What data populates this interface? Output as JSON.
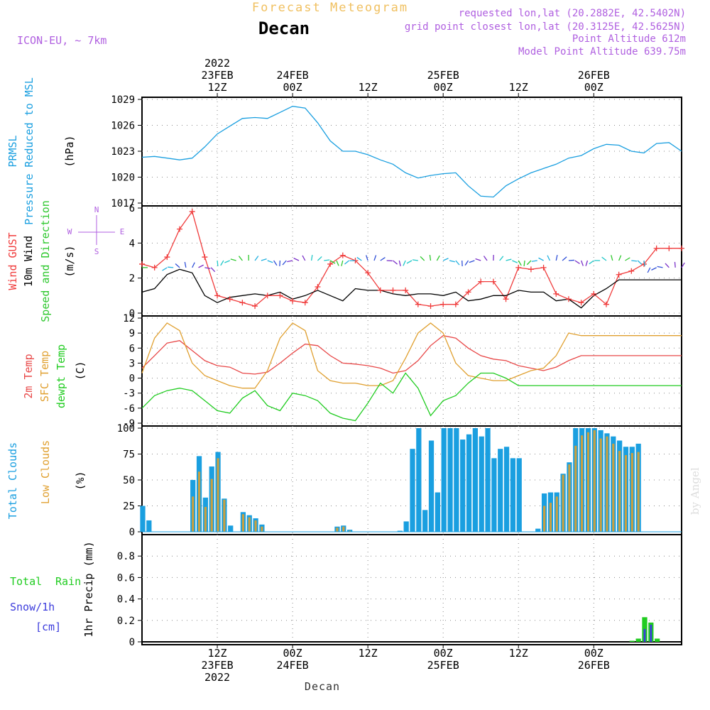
{
  "header": {
    "subtitle": "Forecast Meteogram",
    "title": "Decan",
    "model": "ICON-EU, ~ 7km",
    "requested": "requested lon,lat (20.2882E, 42.5402N)",
    "grid_point": "grid point closest lon,lat (20.3125E, 42.5625N)",
    "point_altitude": "Point Altitude 612m",
    "model_altitude": "Model Point Altitude 639.75m",
    "footer_label": "Decan",
    "watermark": "by Angel"
  },
  "colors": {
    "pressure": "#1a9fe0",
    "gust": "#f03c3c",
    "wind": "#000000",
    "arrow_green": "#2ec82e",
    "temp2m": "#e84848",
    "sfc": "#e0a030",
    "dewpt": "#20cc20",
    "total_clouds": "#1a9fe0",
    "low_clouds": "#c8a040",
    "rain": "#20cc20",
    "snow": "#3c3cdc",
    "label_purple": "#b060e0",
    "title_orange": "#f0c060"
  },
  "time_axis": {
    "top_ticks": [
      {
        "h": 12,
        "lines": [
          "2022",
          "23FEB",
          "12Z"
        ]
      },
      {
        "h": 24,
        "lines": [
          "24FEB",
          "00Z"
        ]
      },
      {
        "h": 36,
        "lines": [
          "12Z"
        ]
      },
      {
        "h": 48,
        "lines": [
          "25FEB",
          "00Z"
        ]
      },
      {
        "h": 60,
        "lines": [
          "12Z"
        ]
      },
      {
        "h": 72,
        "lines": [
          "26FEB",
          "00Z"
        ]
      }
    ],
    "bottom_ticks": [
      {
        "h": 12,
        "lines": [
          "12Z",
          "23FEB",
          "2022"
        ]
      },
      {
        "h": 24,
        "lines": [
          "00Z",
          "24FEB"
        ]
      },
      {
        "h": 36,
        "lines": [
          "12Z"
        ]
      },
      {
        "h": 48,
        "lines": [
          "00Z",
          "25FEB"
        ]
      },
      {
        "h": 60,
        "lines": [
          "12Z"
        ]
      },
      {
        "h": 72,
        "lines": [
          "00Z",
          "26FEB"
        ]
      }
    ]
  },
  "panels": {
    "pressure": {
      "labels": [
        "PRMSL",
        "Pressure Reduced to MSL"
      ],
      "unit": "(hPa)",
      "ylim": [
        1017,
        1029
      ],
      "ticks": [
        1017,
        1020,
        1023,
        1026,
        1029
      ]
    },
    "wind": {
      "labels": [
        "Wind GUST",
        "10m Wind",
        "Speed and Direction"
      ],
      "unit": "(m/s)",
      "ylim": [
        0,
        6
      ],
      "ticks": [
        0,
        2,
        4,
        6
      ],
      "compass": {
        "n": "N",
        "s": "S",
        "w": "W",
        "e": "E"
      }
    },
    "temp": {
      "labels": [
        "2m Temp",
        "SFC Temp",
        "dewpt Temp"
      ],
      "unit": "(C)",
      "ylim": [
        -9,
        12
      ],
      "ticks": [
        -9,
        -6,
        -3,
        0,
        3,
        6,
        9,
        12
      ]
    },
    "clouds": {
      "labels": [
        "Total Clouds",
        "Low Clouds"
      ],
      "unit": "(%)",
      "ylim": [
        0,
        100
      ],
      "ticks": [
        0,
        25,
        50,
        75,
        100
      ]
    },
    "precip": {
      "labels": [
        "Total",
        "Rain",
        "Snow/1h",
        "[cm]"
      ],
      "unit": "1hr Precip (mm)",
      "ylim": [
        0,
        1
      ],
      "ticks": [
        0,
        0.2,
        0.4,
        0.6,
        0.8
      ]
    }
  },
  "chart_data": [
    {
      "type": "line",
      "title": "PRMSL Pressure Reduced to MSL",
      "ylabel": "hPa",
      "ylim": [
        1017,
        1029
      ],
      "x_hours": [
        0,
        2,
        4,
        6,
        8,
        10,
        12,
        14,
        16,
        18,
        20,
        22,
        24,
        26,
        28,
        30,
        32,
        34,
        36,
        38,
        40,
        42,
        44,
        46,
        48,
        50,
        52,
        54,
        56,
        58,
        60,
        62,
        64,
        66,
        68,
        70,
        72,
        74,
        76,
        78,
        80,
        82,
        84,
        86
      ],
      "series": [
        {
          "name": "PRMSL",
          "values": [
            1022.3,
            1022.4,
            1022.2,
            1022.0,
            1022.2,
            1023.5,
            1025.0,
            1025.9,
            1026.8,
            1026.9,
            1026.8,
            1027.5,
            1028.2,
            1028.0,
            1026.3,
            1024.2,
            1023.0,
            1023.0,
            1022.6,
            1022.0,
            1021.5,
            1020.5,
            1019.9,
            1020.2,
            1020.4,
            1020.5,
            1019.0,
            1017.8,
            1017.7,
            1019.0,
            1019.8,
            1020.5,
            1021.0,
            1021.5,
            1022.2,
            1022.5,
            1023.3,
            1023.8,
            1023.7,
            1023.0,
            1022.8,
            1023.9,
            1024.0,
            1023.0
          ]
        }
      ]
    },
    {
      "type": "line",
      "title": "Wind GUST / 10m Wind Speed and Direction",
      "ylabel": "m/s",
      "ylim": [
        0,
        6
      ],
      "x_hours": [
        0,
        2,
        4,
        6,
        8,
        10,
        12,
        14,
        16,
        18,
        20,
        22,
        24,
        26,
        28,
        30,
        32,
        34,
        36,
        38,
        40,
        42,
        44,
        46,
        48,
        50,
        52,
        54,
        56,
        58,
        60,
        62,
        64,
        66,
        68,
        70,
        72,
        74,
        76,
        78,
        80,
        82,
        84,
        86
      ],
      "series": [
        {
          "name": "Wind GUST",
          "values": [
            2.8,
            2.6,
            3.2,
            4.8,
            5.8,
            3.2,
            1.0,
            0.8,
            0.6,
            0.4,
            1.0,
            1.0,
            0.7,
            0.6,
            1.5,
            2.8,
            3.3,
            3.0,
            2.3,
            1.3,
            1.3,
            1.3,
            0.5,
            0.4,
            0.5,
            0.5,
            1.2,
            1.8,
            1.8,
            0.8,
            2.6,
            2.5,
            2.6,
            1.1,
            0.8,
            0.6,
            1.1,
            0.5,
            2.2,
            2.4,
            2.8,
            3.7,
            3.7,
            3.7
          ]
        },
        {
          "name": "10m Wind",
          "values": [
            1.2,
            1.4,
            2.2,
            2.5,
            2.3,
            1.0,
            0.6,
            0.9,
            1.0,
            1.1,
            1.0,
            1.2,
            0.8,
            1.0,
            1.3,
            1.0,
            0.7,
            1.4,
            1.3,
            1.3,
            1.1,
            1.0,
            1.1,
            1.1,
            1.0,
            1.2,
            0.7,
            0.8,
            1.0,
            1.0,
            1.3,
            1.2,
            1.2,
            0.7,
            0.8,
            0.3,
            1.0,
            1.4,
            1.9,
            1.9,
            1.9,
            1.9,
            1.9,
            1.9
          ]
        }
      ]
    },
    {
      "type": "line",
      "title": "2m Temp / SFC Temp / dewpt Temp",
      "ylabel": "C",
      "ylim": [
        -9,
        12
      ],
      "x_hours": [
        0,
        2,
        4,
        6,
        8,
        10,
        12,
        14,
        16,
        18,
        20,
        22,
        24,
        26,
        28,
        30,
        32,
        34,
        36,
        38,
        40,
        42,
        44,
        46,
        48,
        50,
        52,
        54,
        56,
        58,
        60,
        62,
        64,
        66,
        68,
        70,
        72,
        74,
        76,
        78,
        80,
        82,
        84,
        86
      ],
      "series": [
        {
          "name": "2m Temp",
          "values": [
            2.0,
            4.5,
            7.0,
            7.5,
            5.5,
            3.5,
            2.5,
            2.2,
            1.0,
            0.8,
            1.2,
            3.0,
            5.0,
            6.8,
            6.5,
            4.5,
            3.0,
            2.8,
            2.5,
            2.0,
            1.0,
            1.5,
            3.5,
            6.5,
            8.5,
            8.0,
            6.0,
            4.5,
            3.8,
            3.5,
            2.5,
            2.0,
            1.5,
            2.2,
            3.5,
            4.5,
            4.5,
            4.5,
            4.5,
            4.5,
            4.5,
            4.5,
            4.5,
            4.5
          ]
        },
        {
          "name": "SFC Temp",
          "values": [
            1.0,
            8.0,
            11.0,
            9.5,
            3.0,
            0.5,
            -0.5,
            -1.5,
            -2.0,
            -2.0,
            1.5,
            8.0,
            11.0,
            9.5,
            1.5,
            -0.5,
            -1.0,
            -1.0,
            -1.5,
            -1.5,
            -0.5,
            4.0,
            9.0,
            11.0,
            9.0,
            3.0,
            0.5,
            0.0,
            -0.5,
            -0.5,
            0.5,
            1.5,
            2.0,
            4.5,
            9.0,
            8.5,
            8.5,
            8.5,
            8.5,
            8.5,
            8.5,
            8.5,
            8.5,
            8.5
          ]
        },
        {
          "name": "dewpt Temp",
          "values": [
            -6.0,
            -3.5,
            -2.5,
            -2.0,
            -2.5,
            -4.5,
            -6.5,
            -7.0,
            -4.0,
            -2.5,
            -5.5,
            -6.5,
            -3.0,
            -3.5,
            -4.5,
            -7.0,
            -8.0,
            -8.5,
            -5.0,
            -1.0,
            -3.0,
            1.0,
            -2.0,
            -7.5,
            -4.5,
            -3.5,
            -1.0,
            1.0,
            1.0,
            0.0,
            -1.5,
            -1.5,
            -1.5,
            -1.5,
            -1.5,
            -1.5,
            -1.5,
            -1.5,
            -1.5,
            -1.5,
            -1.5,
            -1.5,
            -1.5,
            -1.5
          ]
        }
      ]
    },
    {
      "type": "bar",
      "title": "Total Clouds / Low Clouds",
      "ylabel": "%",
      "ylim": [
        0,
        100
      ],
      "x_hours": [
        0,
        1,
        2,
        3,
        4,
        5,
        6,
        7,
        8,
        9,
        10,
        11,
        12,
        13,
        14,
        15,
        16,
        17,
        18,
        19,
        20,
        21,
        22,
        23,
        24,
        25,
        26,
        27,
        28,
        29,
        30,
        31,
        32,
        33,
        34,
        35,
        36,
        37,
        38,
        39,
        40,
        41,
        42,
        43,
        44,
        45,
        46,
        47,
        48,
        49,
        50,
        51,
        52,
        53,
        54,
        55,
        56,
        57,
        58,
        59,
        60,
        61,
        62,
        63,
        64,
        65,
        66,
        67,
        68,
        69,
        70,
        71,
        72,
        73,
        74,
        75,
        76,
        77,
        78,
        79,
        80,
        81,
        82,
        83,
        84,
        85,
        86
      ],
      "series": [
        {
          "name": "Total Clouds",
          "values": [
            25,
            11,
            0,
            0,
            0,
            0,
            0,
            0,
            50,
            73,
            33,
            63,
            77,
            32,
            6,
            0,
            19,
            16,
            13,
            7,
            0,
            0,
            0,
            0,
            0,
            0,
            0,
            0,
            0,
            0,
            0,
            5,
            6,
            2,
            0,
            0,
            0,
            0,
            0,
            0,
            0,
            1,
            10,
            80,
            100,
            21,
            88,
            38,
            100,
            100,
            100,
            89,
            94,
            100,
            92,
            100,
            71,
            80,
            82,
            71,
            71,
            0,
            0,
            3,
            37,
            38,
            38,
            56,
            67,
            100,
            100,
            100,
            100,
            98,
            95,
            92,
            88,
            82,
            82,
            85,
            0,
            0,
            0,
            0,
            0,
            0,
            0
          ]
        },
        {
          "name": "Low Clouds",
          "values": [
            0,
            0,
            0,
            0,
            0,
            0,
            0,
            0,
            34,
            58,
            24,
            51,
            71,
            31,
            0,
            0,
            17,
            14,
            11,
            5,
            0,
            0,
            0,
            0,
            0,
            0,
            0,
            0,
            0,
            0,
            0,
            4,
            5,
            1,
            0,
            0,
            0,
            0,
            0,
            0,
            0,
            0,
            0,
            0,
            0,
            0,
            0,
            0,
            0,
            0,
            0,
            0,
            0,
            0,
            0,
            0,
            0,
            0,
            0,
            0,
            0,
            0,
            0,
            0,
            25,
            28,
            34,
            55,
            65,
            83,
            93,
            96,
            98,
            90,
            92,
            85,
            78,
            74,
            76,
            77,
            0,
            0,
            0,
            0,
            0,
            0,
            0
          ]
        }
      ]
    },
    {
      "type": "bar",
      "title": "1hr Precip (mm) Total Rain Snow/1h [cm]",
      "ylabel": "mm",
      "ylim": [
        0,
        1
      ],
      "x_hours": [
        78,
        79,
        80,
        81,
        82,
        83
      ],
      "series": [
        {
          "name": "Total",
          "values": [
            0.01,
            0.03,
            0.23,
            0.18,
            0.03,
            0.0
          ]
        },
        {
          "name": "Rain",
          "values": [
            0.01,
            0.03,
            0.23,
            0.18,
            0.03,
            0.0
          ]
        },
        {
          "name": "Snow/1h",
          "values": [
            0.0,
            0.0,
            0.12,
            0.16,
            0.0,
            0.0
          ]
        }
      ]
    }
  ]
}
